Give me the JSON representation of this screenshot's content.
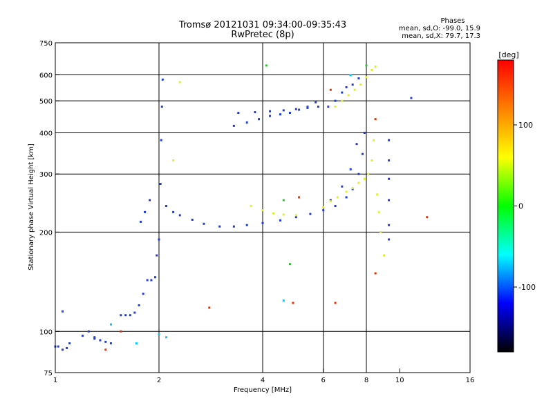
{
  "chart_data": {
    "type": "scatter",
    "title": "Tromsø 20121031 09:34:00-09:35:43",
    "subtitle": "RwPretec (8p)",
    "xlabel": "Frequency [MHz]",
    "ylabel": "Stationary phase Virtual Height [km]",
    "x_scale": "log",
    "y_scale": "log",
    "xlim": [
      1,
      16
    ],
    "ylim": [
      75,
      750
    ],
    "x_ticks": [
      1,
      2,
      4,
      6,
      8,
      10,
      16
    ],
    "y_ticks": [
      75,
      100,
      200,
      300,
      400,
      500,
      600,
      750
    ],
    "x_grid": [
      2,
      4,
      6,
      8
    ],
    "y_grid": [
      100,
      200,
      300,
      400,
      500,
      600
    ],
    "grid": true,
    "legend": {
      "heading": "Phases",
      "lines": [
        "mean, sd,O: -99.0, 15.9",
        "mean, sd,X:  79.7, 17.3"
      ],
      "placement": "top-right"
    },
    "colorbar": {
      "label": "[deg]",
      "ticks": [
        100,
        0,
        -100
      ],
      "range": [
        -180,
        180
      ],
      "colors_top_to_bottom": [
        "#ff0000",
        "#ff8000",
        "#ffff00",
        "#00ff00",
        "#00ffff",
        "#0000ff",
        "#000000"
      ]
    },
    "series": [
      {
        "color": "#1f3bdc",
        "points": [
          [
            1.0,
            90
          ],
          [
            1.02,
            90
          ],
          [
            1.05,
            88
          ],
          [
            1.08,
            89
          ],
          [
            1.1,
            92
          ],
          [
            1.2,
            97
          ],
          [
            1.25,
            100
          ],
          [
            1.3,
            96
          ],
          [
            1.35,
            94
          ],
          [
            1.4,
            93
          ],
          [
            1.45,
            92
          ],
          [
            1.55,
            112
          ],
          [
            1.6,
            112
          ],
          [
            1.65,
            112
          ],
          [
            1.7,
            114
          ],
          [
            1.75,
            120
          ],
          [
            1.8,
            130
          ],
          [
            1.85,
            143
          ],
          [
            1.9,
            143
          ],
          [
            1.95,
            146
          ],
          [
            1.97,
            170
          ],
          [
            2.0,
            190
          ],
          [
            2.02,
            280
          ],
          [
            2.03,
            380
          ],
          [
            2.04,
            480
          ],
          [
            2.05,
            580
          ],
          [
            1.88,
            250
          ],
          [
            1.82,
            230
          ],
          [
            1.77,
            215
          ],
          [
            2.1,
            240
          ],
          [
            2.2,
            230
          ],
          [
            2.3,
            225
          ],
          [
            2.5,
            218
          ],
          [
            2.7,
            212
          ],
          [
            3.0,
            208
          ],
          [
            3.3,
            208
          ],
          [
            3.6,
            210
          ],
          [
            4.0,
            213
          ],
          [
            4.5,
            217
          ],
          [
            5.0,
            222
          ],
          [
            5.5,
            227
          ],
          [
            6.0,
            233
          ],
          [
            6.5,
            240
          ],
          [
            7.0,
            255
          ],
          [
            7.3,
            270
          ],
          [
            7.6,
            300
          ],
          [
            7.8,
            345
          ],
          [
            7.9,
            400
          ],
          [
            6.3,
            250
          ],
          [
            6.8,
            275
          ],
          [
            7.2,
            310
          ],
          [
            7.5,
            370
          ],
          [
            3.3,
            420
          ],
          [
            3.6,
            430
          ],
          [
            3.9,
            440
          ],
          [
            4.2,
            450
          ],
          [
            4.5,
            455
          ],
          [
            4.8,
            460
          ],
          [
            5.1,
            470
          ],
          [
            5.4,
            480
          ],
          [
            5.7,
            495
          ],
          [
            3.4,
            460
          ],
          [
            3.8,
            462
          ],
          [
            4.2,
            465
          ],
          [
            4.6,
            468
          ],
          [
            5.0,
            472
          ],
          [
            5.4,
            476
          ],
          [
            5.8,
            480
          ],
          [
            6.2,
            480
          ],
          [
            6.5,
            500
          ],
          [
            6.8,
            530
          ],
          [
            7.0,
            550
          ],
          [
            7.3,
            560
          ],
          [
            7.6,
            585
          ],
          [
            9.3,
            380
          ],
          [
            9.3,
            330
          ],
          [
            9.3,
            290
          ],
          [
            9.3,
            250
          ],
          [
            9.3,
            210
          ],
          [
            9.3,
            190
          ],
          [
            10.8,
            510
          ],
          [
            1.05,
            115
          ],
          [
            1.3,
            95
          ]
        ]
      },
      {
        "color": "#e0f028",
        "points": [
          [
            3.7,
            240
          ],
          [
            4.0,
            233
          ],
          [
            4.3,
            228
          ],
          [
            4.6,
            226
          ],
          [
            5.0,
            225
          ],
          [
            6.0,
            238
          ],
          [
            6.3,
            248
          ],
          [
            6.6,
            255
          ],
          [
            7.0,
            265
          ],
          [
            7.3,
            272
          ],
          [
            7.6,
            282
          ],
          [
            7.9,
            290
          ],
          [
            8.1,
            300
          ],
          [
            8.3,
            330
          ],
          [
            8.4,
            380
          ],
          [
            8.5,
            440
          ],
          [
            6.5,
            480
          ],
          [
            6.8,
            500
          ],
          [
            7.1,
            520
          ],
          [
            7.4,
            540
          ],
          [
            7.7,
            560
          ],
          [
            8.0,
            590
          ],
          [
            8.3,
            620
          ],
          [
            8.5,
            635
          ],
          [
            8.6,
            260
          ],
          [
            8.7,
            230
          ],
          [
            8.8,
            200
          ],
          [
            9.0,
            170
          ],
          [
            2.2,
            330
          ],
          [
            2.3,
            570
          ]
        ]
      },
      {
        "color": "#00c8ff",
        "points": [
          [
            1.45,
            105
          ],
          [
            1.72,
            92
          ],
          [
            2.0,
            98
          ],
          [
            2.1,
            96
          ],
          [
            4.6,
            124
          ],
          [
            7.2,
            598
          ]
        ]
      },
      {
        "color": "#e83000",
        "points": [
          [
            1.4,
            88
          ],
          [
            1.55,
            100
          ],
          [
            2.8,
            118
          ],
          [
            4.9,
            122
          ],
          [
            6.5,
            122
          ],
          [
            5.1,
            255
          ],
          [
            6.3,
            540
          ],
          [
            8.5,
            150
          ],
          [
            8.5,
            440
          ],
          [
            12.0,
            222
          ]
        ]
      },
      {
        "color": "#28c828",
        "points": [
          [
            4.1,
            640
          ],
          [
            4.8,
            160
          ],
          [
            4.6,
            250
          ],
          [
            8.0,
            640
          ]
        ]
      }
    ]
  }
}
